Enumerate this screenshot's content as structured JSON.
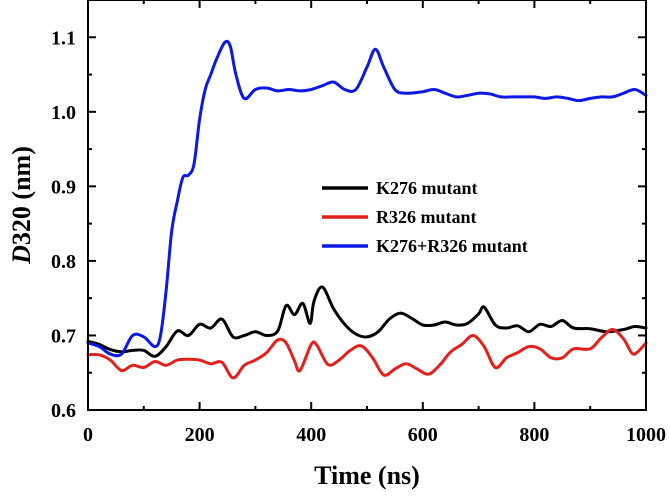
{
  "chart_data": {
    "type": "line",
    "title": "",
    "xlabel": "Time (ns)",
    "ylabel_italic": "D",
    "ylabel_rest": "320 (nm)",
    "xlim": [
      0,
      1000
    ],
    "ylim": [
      0.6,
      1.15
    ],
    "x_ticks": [
      0,
      200,
      400,
      600,
      800,
      1000
    ],
    "x_tick_labels": [
      "0",
      "200",
      "400",
      "600",
      "800",
      "1000"
    ],
    "y_ticks": [
      0.6,
      0.7,
      0.8,
      0.9,
      1.0,
      1.1
    ],
    "y_tick_labels": [
      "0.6",
      "0.7",
      "0.8",
      "0.9",
      "1.0",
      "1.1"
    ],
    "legend_position": "center-right",
    "series": [
      {
        "name": "K276 mutant",
        "color": "#000000",
        "points": [
          [
            0,
            0.692
          ],
          [
            20,
            0.688
          ],
          [
            40,
            0.681
          ],
          [
            60,
            0.678
          ],
          [
            80,
            0.68
          ],
          [
            100,
            0.68
          ],
          [
            120,
            0.672
          ],
          [
            140,
            0.685
          ],
          [
            160,
            0.706
          ],
          [
            180,
            0.7
          ],
          [
            200,
            0.715
          ],
          [
            220,
            0.71
          ],
          [
            240,
            0.722
          ],
          [
            260,
            0.698
          ],
          [
            280,
            0.7
          ],
          [
            300,
            0.705
          ],
          [
            320,
            0.7
          ],
          [
            340,
            0.706
          ],
          [
            355,
            0.74
          ],
          [
            370,
            0.728
          ],
          [
            385,
            0.743
          ],
          [
            398,
            0.716
          ],
          [
            405,
            0.746
          ],
          [
            420,
            0.765
          ],
          [
            440,
            0.736
          ],
          [
            460,
            0.715
          ],
          [
            480,
            0.702
          ],
          [
            500,
            0.698
          ],
          [
            520,
            0.705
          ],
          [
            540,
            0.722
          ],
          [
            560,
            0.73
          ],
          [
            580,
            0.723
          ],
          [
            600,
            0.714
          ],
          [
            620,
            0.714
          ],
          [
            640,
            0.718
          ],
          [
            660,
            0.714
          ],
          [
            680,
            0.716
          ],
          [
            700,
            0.729
          ],
          [
            710,
            0.738
          ],
          [
            730,
            0.714
          ],
          [
            750,
            0.71
          ],
          [
            770,
            0.713
          ],
          [
            790,
            0.705
          ],
          [
            810,
            0.715
          ],
          [
            830,
            0.712
          ],
          [
            850,
            0.72
          ],
          [
            870,
            0.71
          ],
          [
            900,
            0.709
          ],
          [
            930,
            0.705
          ],
          [
            960,
            0.708
          ],
          [
            980,
            0.712
          ],
          [
            1000,
            0.71
          ]
        ]
      },
      {
        "name": "R326 mutant",
        "color": "#e4201c",
        "points": [
          [
            0,
            0.674
          ],
          [
            20,
            0.674
          ],
          [
            40,
            0.667
          ],
          [
            60,
            0.653
          ],
          [
            80,
            0.66
          ],
          [
            100,
            0.657
          ],
          [
            120,
            0.665
          ],
          [
            140,
            0.66
          ],
          [
            160,
            0.667
          ],
          [
            180,
            0.668
          ],
          [
            200,
            0.667
          ],
          [
            220,
            0.662
          ],
          [
            240,
            0.664
          ],
          [
            260,
            0.643
          ],
          [
            280,
            0.66
          ],
          [
            300,
            0.667
          ],
          [
            320,
            0.677
          ],
          [
            340,
            0.694
          ],
          [
            355,
            0.69
          ],
          [
            370,
            0.666
          ],
          [
            380,
            0.653
          ],
          [
            400,
            0.688
          ],
          [
            410,
            0.687
          ],
          [
            430,
            0.661
          ],
          [
            450,
            0.667
          ],
          [
            470,
            0.68
          ],
          [
            490,
            0.686
          ],
          [
            510,
            0.67
          ],
          [
            530,
            0.647
          ],
          [
            550,
            0.655
          ],
          [
            570,
            0.662
          ],
          [
            590,
            0.655
          ],
          [
            610,
            0.648
          ],
          [
            630,
            0.66
          ],
          [
            650,
            0.678
          ],
          [
            670,
            0.688
          ],
          [
            690,
            0.7
          ],
          [
            710,
            0.685
          ],
          [
            730,
            0.657
          ],
          [
            750,
            0.67
          ],
          [
            770,
            0.677
          ],
          [
            790,
            0.685
          ],
          [
            810,
            0.682
          ],
          [
            830,
            0.67
          ],
          [
            850,
            0.67
          ],
          [
            870,
            0.682
          ],
          [
            900,
            0.682
          ],
          [
            920,
            0.697
          ],
          [
            940,
            0.708
          ],
          [
            960,
            0.695
          ],
          [
            975,
            0.676
          ],
          [
            985,
            0.678
          ],
          [
            1000,
            0.69
          ]
        ]
      },
      {
        "name": "K276+R326 mutant",
        "color": "#0b18e6",
        "points": [
          [
            0,
            0.69
          ],
          [
            20,
            0.685
          ],
          [
            40,
            0.675
          ],
          [
            60,
            0.675
          ],
          [
            80,
            0.7
          ],
          [
            100,
            0.698
          ],
          [
            120,
            0.685
          ],
          [
            130,
            0.7
          ],
          [
            140,
            0.76
          ],
          [
            150,
            0.84
          ],
          [
            160,
            0.88
          ],
          [
            170,
            0.912
          ],
          [
            180,
            0.915
          ],
          [
            190,
            0.93
          ],
          [
            200,
            0.99
          ],
          [
            210,
            1.03
          ],
          [
            220,
            1.05
          ],
          [
            230,
            1.07
          ],
          [
            245,
            1.093
          ],
          [
            255,
            1.088
          ],
          [
            265,
            1.05
          ],
          [
            280,
            1.018
          ],
          [
            300,
            1.03
          ],
          [
            320,
            1.032
          ],
          [
            340,
            1.028
          ],
          [
            360,
            1.03
          ],
          [
            380,
            1.028
          ],
          [
            400,
            1.03
          ],
          [
            420,
            1.035
          ],
          [
            440,
            1.04
          ],
          [
            460,
            1.03
          ],
          [
            480,
            1.03
          ],
          [
            500,
            1.06
          ],
          [
            515,
            1.084
          ],
          [
            530,
            1.06
          ],
          [
            550,
            1.03
          ],
          [
            570,
            1.025
          ],
          [
            600,
            1.027
          ],
          [
            620,
            1.03
          ],
          [
            640,
            1.025
          ],
          [
            660,
            1.02
          ],
          [
            680,
            1.022
          ],
          [
            700,
            1.025
          ],
          [
            720,
            1.024
          ],
          [
            740,
            1.02
          ],
          [
            760,
            1.02
          ],
          [
            780,
            1.02
          ],
          [
            800,
            1.02
          ],
          [
            820,
            1.018
          ],
          [
            840,
            1.02
          ],
          [
            860,
            1.018
          ],
          [
            880,
            1.015
          ],
          [
            900,
            1.018
          ],
          [
            920,
            1.02
          ],
          [
            940,
            1.02
          ],
          [
            960,
            1.025
          ],
          [
            980,
            1.03
          ],
          [
            1000,
            1.022
          ]
        ]
      }
    ]
  }
}
